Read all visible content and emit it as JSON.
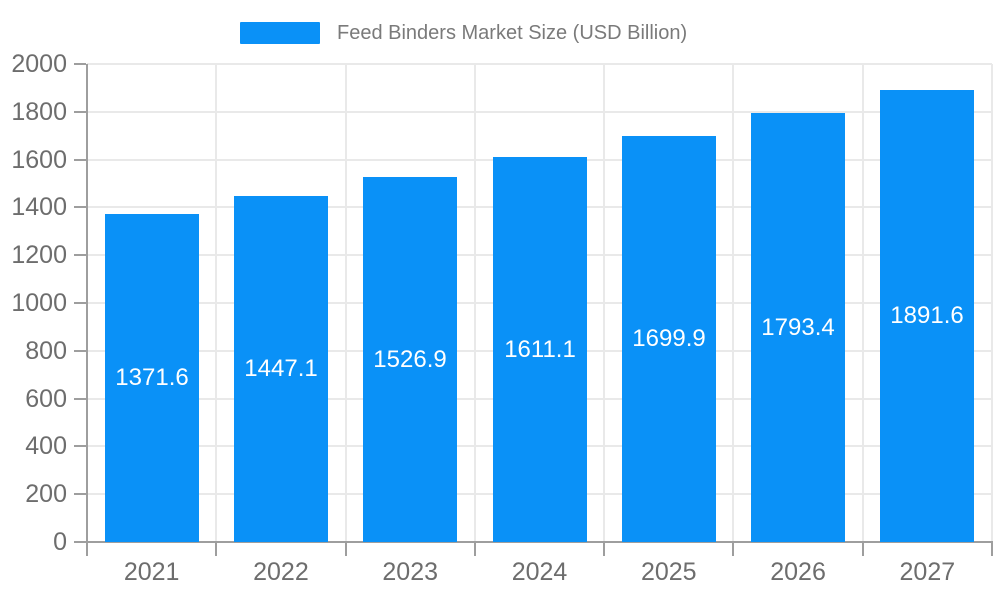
{
  "chart_data": {
    "type": "bar",
    "title": "Feed Binders Market Size (USD Billion)",
    "legend": [
      "Feed Binders Market Size (USD Billion)"
    ],
    "legend_position": "top-center",
    "categories": [
      "2021",
      "2022",
      "2023",
      "2024",
      "2025",
      "2026",
      "2027"
    ],
    "series": [
      {
        "name": "Feed Binders Market Size (USD Billion)",
        "values": [
          1371.6,
          1447.1,
          1526.9,
          1611.1,
          1699.9,
          1793.4,
          1891.6
        ]
      }
    ],
    "value_labels": "inside-center",
    "xlabel": "",
    "ylabel": "",
    "ylim": [
      0,
      2000
    ],
    "ytick_step": 200,
    "ytick_labels": [
      "0",
      "200",
      "400",
      "600",
      "800",
      "1000",
      "1200",
      "1400",
      "1600",
      "1800",
      "2000"
    ],
    "grid": "horizontal and vertical gridlines on",
    "colors": {
      "bar": "#0a91f7",
      "value_label": "#ffffff",
      "axis_label": "#6d6d6d",
      "legend_text": "#7a7a7a",
      "axis_line": "#9e9e9e",
      "tick": "#9e9e9e",
      "gridline": "#e9e9e9",
      "background": "#ffffff"
    }
  }
}
